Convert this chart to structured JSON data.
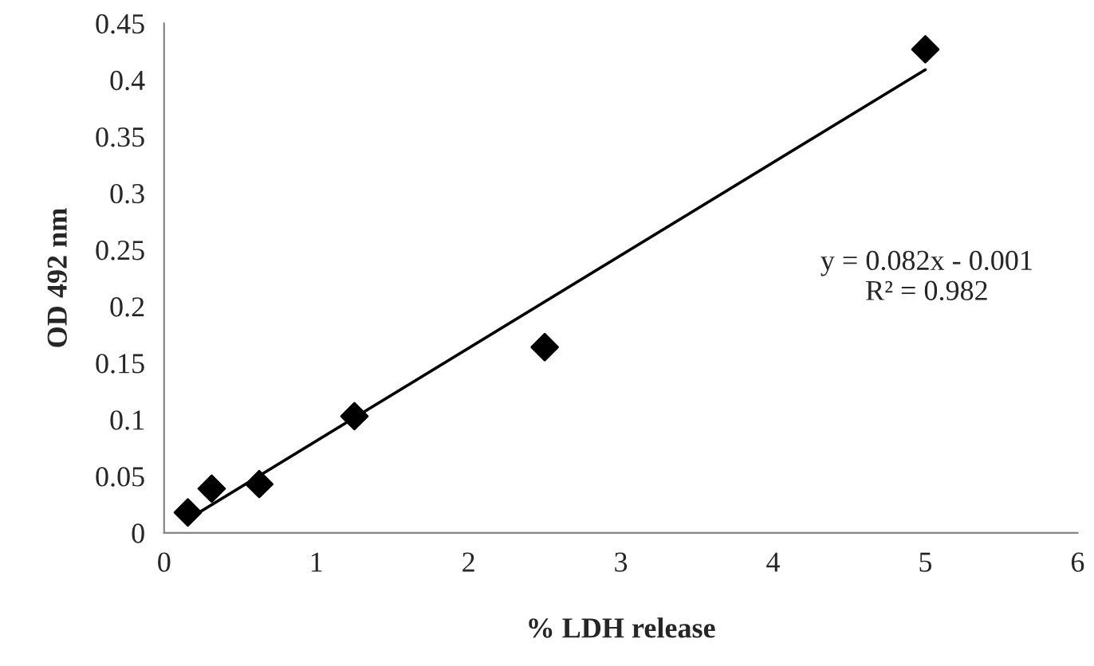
{
  "chart_data": {
    "type": "scatter",
    "xlabel": "% LDH release",
    "ylabel": "OD 492 nm",
    "xlim": [
      0,
      6
    ],
    "xticks": [
      0,
      1,
      2,
      3,
      4,
      5,
      6
    ],
    "ylim": [
      0,
      0.45
    ],
    "yticks": [
      0,
      0.05,
      0.1,
      0.15,
      0.2,
      0.25,
      0.3,
      0.35,
      0.4,
      0.45
    ],
    "grid": false,
    "legend": false,
    "series": [
      {
        "marker": "diamond",
        "color": "#000000",
        "x": [
          0.156,
          0.3125,
          0.625,
          1.25,
          2.5,
          5
        ],
        "values": [
          0.018,
          0.039,
          0.043,
          0.103,
          0.164,
          0.427
        ]
      },
      {
        "type": "line",
        "color": "#000000",
        "x": [
          0.156,
          5
        ],
        "values": [
          0.012,
          0.409
        ]
      }
    ],
    "annotations": [
      "y = 0.082x - 0.001\nR² = 0.982"
    ]
  }
}
